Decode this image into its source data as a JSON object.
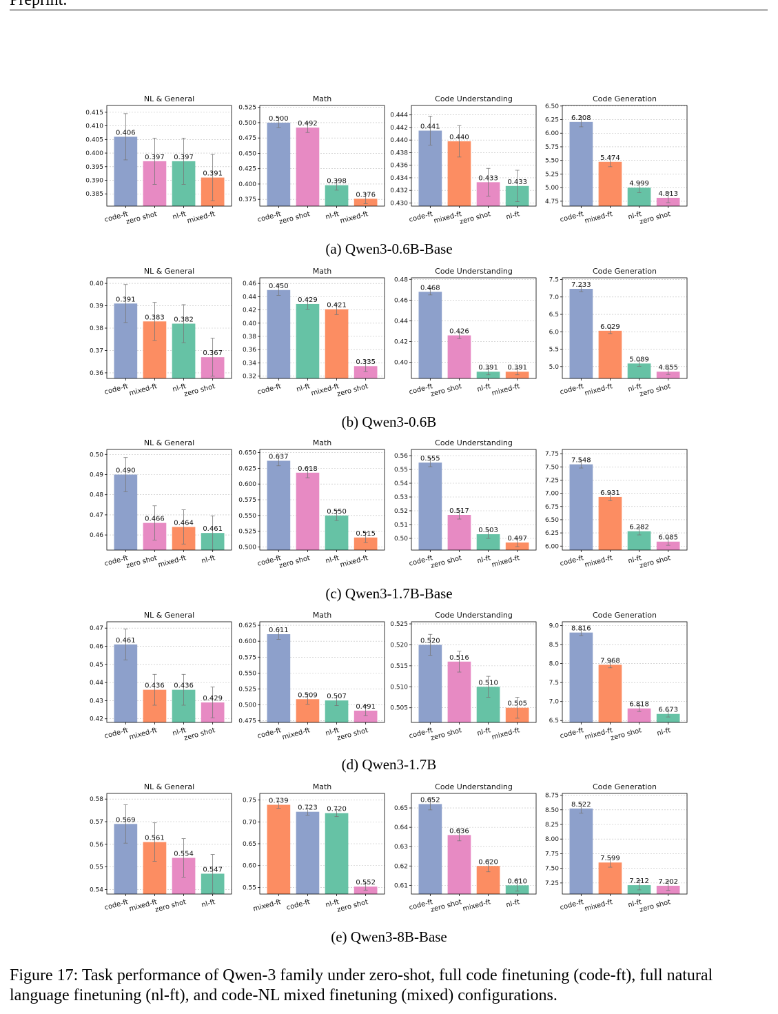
{
  "header": {
    "text": "Preprint."
  },
  "figure_caption": "Figure 17: Task performance of Qwen-3 family under zero-shot, full code finetuning (code-ft), full natural language finetuning (nl-ft), and code-NL mixed finetuning (mixed) configurations.",
  "colors": {
    "code-ft": "#8DA0CB",
    "zero shot": "#E78AC3",
    "nl-ft": "#66C2A5",
    "mixed-ft": "#FC8D62"
  },
  "rows": [
    {
      "label": "(a) Qwen3-0.6B-Base"
    },
    {
      "label": "(b) Qwen3-0.6B"
    },
    {
      "label": "(c) Qwen3-1.7B-Base"
    },
    {
      "label": "(d) Qwen3-1.7B"
    },
    {
      "label": "(e) Qwen3-8B-Base"
    }
  ],
  "chart_data": [
    {
      "type": "bar",
      "title": "NL & General",
      "categories": [
        "code-ft",
        "zero shot",
        "nl-ft",
        "mixed-ft"
      ],
      "values": [
        0.406,
        0.397,
        0.397,
        0.391
      ],
      "value_labels": [
        "0.406",
        "0.397",
        "0.397",
        "0.391"
      ],
      "errors": [
        0.0085,
        0.0085,
        0.0085,
        0.0085
      ],
      "ylim": [
        0.3805,
        0.4175
      ],
      "yticks": [
        0.385,
        0.39,
        0.395,
        0.4,
        0.405,
        0.41,
        0.415
      ],
      "ytick_labels": [
        "0.385",
        "0.390",
        "0.395",
        "0.400",
        "0.405",
        "0.410",
        "0.415"
      ],
      "grid": true
    },
    {
      "type": "bar",
      "title": "Math",
      "categories": [
        "code-ft",
        "zero shot",
        "nl-ft",
        "mixed-ft"
      ],
      "values": [
        0.5,
        0.492,
        0.398,
        0.376
      ],
      "value_labels": [
        "0.500",
        "0.492",
        "0.398",
        "0.376"
      ],
      "errors": [
        0.008,
        0.008,
        0.008,
        0.008
      ],
      "ylim": [
        0.364,
        0.528
      ],
      "yticks": [
        0.375,
        0.4,
        0.425,
        0.45,
        0.475,
        0.5,
        0.525
      ],
      "ytick_labels": [
        "0.375",
        "0.400",
        "0.425",
        "0.450",
        "0.475",
        "0.500",
        "0.525"
      ],
      "grid": true
    },
    {
      "type": "bar",
      "title": "Code Understanding",
      "categories": [
        "code-ft",
        "mixed-ft",
        "zero shot",
        "nl-ft"
      ],
      "values": [
        0.4415,
        0.4398,
        0.4333,
        0.4327
      ],
      "value_labels": [
        "0.441",
        "0.440",
        "0.433",
        "0.433"
      ],
      "errors": [
        0.0023,
        0.0025,
        0.0022,
        0.0025
      ],
      "ylim": [
        0.4295,
        0.4455
      ],
      "yticks": [
        0.43,
        0.432,
        0.434,
        0.436,
        0.438,
        0.44,
        0.442,
        0.444
      ],
      "ytick_labels": [
        "0.430",
        "0.432",
        "0.434",
        "0.436",
        "0.438",
        "0.440",
        "0.442",
        "0.444"
      ],
      "grid": true
    },
    {
      "type": "bar",
      "title": "Code Generation",
      "categories": [
        "code-ft",
        "mixed-ft",
        "nl-ft",
        "zero shot"
      ],
      "values": [
        6.208,
        5.474,
        4.999,
        4.813
      ],
      "value_labels": [
        "6.208",
        "5.474",
        "4.999",
        "4.813"
      ],
      "errors": [
        0.09,
        0.09,
        0.09,
        0.09
      ],
      "ylim": [
        4.66,
        6.51
      ],
      "yticks": [
        4.75,
        5.0,
        5.25,
        5.5,
        5.75,
        6.0,
        6.25,
        6.5
      ],
      "ytick_labels": [
        "4.75",
        "5.00",
        "5.25",
        "5.50",
        "5.75",
        "6.00",
        "6.25",
        "6.50"
      ],
      "grid": true
    },
    {
      "type": "bar",
      "title": "NL & General",
      "categories": [
        "code-ft",
        "mixed-ft",
        "nl-ft",
        "zero shot"
      ],
      "values": [
        0.391,
        0.383,
        0.382,
        0.367
      ],
      "value_labels": [
        "0.391",
        "0.383",
        "0.382",
        "0.367"
      ],
      "errors": [
        0.0085,
        0.0085,
        0.0085,
        0.0085
      ],
      "ylim": [
        0.3575,
        0.4025
      ],
      "yticks": [
        0.36,
        0.37,
        0.38,
        0.39,
        0.4
      ],
      "ytick_labels": [
        "0.36",
        "0.37",
        "0.38",
        "0.39",
        "0.40"
      ],
      "grid": true
    },
    {
      "type": "bar",
      "title": "Math",
      "categories": [
        "code-ft",
        "nl-ft",
        "mixed-ft",
        "zero shot"
      ],
      "values": [
        0.45,
        0.429,
        0.421,
        0.335
      ],
      "value_labels": [
        "0.450",
        "0.429",
        "0.421",
        "0.335"
      ],
      "errors": [
        0.008,
        0.008,
        0.008,
        0.008
      ],
      "ylim": [
        0.3165,
        0.4685
      ],
      "yticks": [
        0.32,
        0.34,
        0.36,
        0.38,
        0.4,
        0.42,
        0.44,
        0.46
      ],
      "ytick_labels": [
        "0.32",
        "0.34",
        "0.36",
        "0.38",
        "0.40",
        "0.42",
        "0.44",
        "0.46"
      ],
      "grid": true
    },
    {
      "type": "bar",
      "title": "Code Understanding",
      "categories": [
        "code-ft",
        "zero shot",
        "nl-ft",
        "mixed-ft"
      ],
      "values": [
        0.468,
        0.426,
        0.391,
        0.391
      ],
      "value_labels": [
        "0.468",
        "0.426",
        "0.391",
        "0.391"
      ],
      "errors": [
        0.003,
        0.003,
        0.003,
        0.003
      ],
      "ylim": [
        0.3845,
        0.4815
      ],
      "yticks": [
        0.4,
        0.42,
        0.44,
        0.46,
        0.48
      ],
      "ytick_labels": [
        "0.40",
        "0.42",
        "0.44",
        "0.46",
        "0.48"
      ],
      "grid": true
    },
    {
      "type": "bar",
      "title": "Code Generation",
      "categories": [
        "code-ft",
        "mixed-ft",
        "nl-ft",
        "zero shot"
      ],
      "values": [
        7.233,
        6.029,
        5.089,
        4.855
      ],
      "value_labels": [
        "7.233",
        "6.029",
        "5.089",
        "4.855"
      ],
      "errors": [
        0.08,
        0.08,
        0.08,
        0.08
      ],
      "ylim": [
        4.66,
        7.55
      ],
      "yticks": [
        5.0,
        5.5,
        6.0,
        6.5,
        7.0,
        7.5
      ],
      "ytick_labels": [
        "5.0",
        "5.5",
        "6.0",
        "6.5",
        "7.0",
        "7.5"
      ],
      "grid": true
    },
    {
      "type": "bar",
      "title": "NL & General",
      "categories": [
        "code-ft",
        "zero shot",
        "mixed-ft",
        "nl-ft"
      ],
      "values": [
        0.49,
        0.466,
        0.464,
        0.461
      ],
      "value_labels": [
        "0.490",
        "0.466",
        "0.464",
        "0.461"
      ],
      "errors": [
        0.0085,
        0.0085,
        0.0085,
        0.0085
      ],
      "ylim": [
        0.4525,
        0.5025
      ],
      "yticks": [
        0.46,
        0.47,
        0.48,
        0.49,
        0.5
      ],
      "ytick_labels": [
        "0.46",
        "0.47",
        "0.48",
        "0.49",
        "0.50"
      ],
      "grid": true
    },
    {
      "type": "bar",
      "title": "Math",
      "categories": [
        "code-ft",
        "zero shot",
        "nl-ft",
        "mixed-ft"
      ],
      "values": [
        0.637,
        0.618,
        0.55,
        0.515
      ],
      "value_labels": [
        "0.637",
        "0.618",
        "0.550",
        "0.515"
      ],
      "errors": [
        0.008,
        0.008,
        0.008,
        0.008
      ],
      "ylim": [
        0.495,
        0.655
      ],
      "yticks": [
        0.5,
        0.525,
        0.55,
        0.575,
        0.6,
        0.625,
        0.65
      ],
      "ytick_labels": [
        "0.500",
        "0.525",
        "0.550",
        "0.575",
        "0.600",
        "0.625",
        "0.650"
      ],
      "grid": true
    },
    {
      "type": "bar",
      "title": "Code Understanding",
      "categories": [
        "code-ft",
        "zero shot",
        "nl-ft",
        "mixed-ft"
      ],
      "values": [
        0.555,
        0.517,
        0.503,
        0.497
      ],
      "value_labels": [
        "0.555",
        "0.517",
        "0.503",
        "0.497"
      ],
      "errors": [
        0.003,
        0.003,
        0.003,
        0.003
      ],
      "ylim": [
        0.4915,
        0.5645
      ],
      "yticks": [
        0.5,
        0.51,
        0.52,
        0.53,
        0.54,
        0.55,
        0.56
      ],
      "ytick_labels": [
        "0.50",
        "0.51",
        "0.52",
        "0.53",
        "0.54",
        "0.55",
        "0.56"
      ],
      "grid": true
    },
    {
      "type": "bar",
      "title": "",
      "categories": [
        "code-ft",
        "mixed-ft",
        "nl-ft",
        "zero shot"
      ],
      "values": [
        7.548,
        6.931,
        6.282,
        6.085
      ],
      "value_labels": [
        "7.548",
        "6.931",
        "6.282",
        "6.085"
      ],
      "errors": [
        0.07,
        0.07,
        0.07,
        0.07
      ],
      "ylim": [
        5.925,
        7.83
      ],
      "yticks": [
        6.0,
        6.25,
        6.5,
        6.75,
        7.0,
        7.25,
        7.5,
        7.75
      ],
      "ytick_labels": [
        "6.00",
        "6.25",
        "6.50",
        "6.75",
        "7.00",
        "7.25",
        "7.50",
        "7.75"
      ],
      "grid": true
    },
    {
      "type": "bar",
      "title": "NL & General",
      "categories": [
        "code-ft",
        "mixed-ft",
        "nl-ft",
        "zero shot"
      ],
      "values": [
        0.461,
        0.436,
        0.436,
        0.429
      ],
      "value_labels": [
        "0.461",
        "0.436",
        "0.436",
        "0.429"
      ],
      "errors": [
        0.0085,
        0.0085,
        0.0085,
        0.0085
      ],
      "ylim": [
        0.418,
        0.4735
      ],
      "yticks": [
        0.42,
        0.43,
        0.44,
        0.45,
        0.46,
        0.47
      ],
      "ytick_labels": [
        "0.42",
        "0.43",
        "0.44",
        "0.45",
        "0.46",
        "0.47"
      ],
      "grid": true
    },
    {
      "type": "bar",
      "title": "Math",
      "categories": [
        "code-ft",
        "mixed-ft",
        "nl-ft",
        "zero shot"
      ],
      "values": [
        0.611,
        0.509,
        0.507,
        0.491
      ],
      "value_labels": [
        "0.611",
        "0.509",
        "0.507",
        "0.491"
      ],
      "errors": [
        0.008,
        0.008,
        0.008,
        0.008
      ],
      "ylim": [
        0.4725,
        0.6305
      ],
      "yticks": [
        0.475,
        0.5,
        0.525,
        0.55,
        0.575,
        0.6,
        0.625
      ],
      "ytick_labels": [
        "0.475",
        "0.500",
        "0.525",
        "0.550",
        "0.575",
        "0.600",
        "0.625"
      ],
      "grid": true
    },
    {
      "type": "bar",
      "title": "Code Understanding",
      "categories": [
        "code-ft",
        "zero shot",
        "nl-ft",
        "mixed-ft"
      ],
      "values": [
        0.52,
        0.516,
        0.51,
        0.505
      ],
      "value_labels": [
        "0.520",
        "0.516",
        "0.510",
        "0.505"
      ],
      "errors": [
        0.0025,
        0.0025,
        0.0025,
        0.0025
      ],
      "ylim": [
        0.5015,
        0.5255
      ],
      "yticks": [
        0.505,
        0.51,
        0.515,
        0.52,
        0.525
      ],
      "ytick_labels": [
        "0.505",
        "0.510",
        "0.515",
        "0.520",
        "0.525"
      ],
      "grid": true
    },
    {
      "type": "bar",
      "title": "Code Generation",
      "categories": [
        "code-ft",
        "mixed-ft",
        "zero shot",
        "nl-ft"
      ],
      "values": [
        8.816,
        7.968,
        6.818,
        6.673
      ],
      "value_labels": [
        "8.816",
        "7.968",
        "6.818",
        "6.673"
      ],
      "errors": [
        0.08,
        0.08,
        0.08,
        0.08
      ],
      "ylim": [
        6.45,
        9.1
      ],
      "yticks": [
        6.5,
        7.0,
        7.5,
        8.0,
        8.5,
        9.0
      ],
      "ytick_labels": [
        "6.5",
        "7.0",
        "7.5",
        "8.0",
        "8.5",
        "9.0"
      ],
      "grid": true
    },
    {
      "type": "bar",
      "title": "NL & General",
      "categories": [
        "code-ft",
        "mixed-ft",
        "zero shot",
        "nl-ft"
      ],
      "values": [
        0.569,
        0.561,
        0.554,
        0.547
      ],
      "value_labels": [
        "0.569",
        "0.561",
        "0.554",
        "0.547"
      ],
      "errors": [
        0.0085,
        0.0085,
        0.0085,
        0.0085
      ],
      "ylim": [
        0.538,
        0.5825
      ],
      "yticks": [
        0.54,
        0.55,
        0.56,
        0.57,
        0.58
      ],
      "ytick_labels": [
        "0.54",
        "0.55",
        "0.56",
        "0.57",
        "0.58"
      ],
      "grid": true
    },
    {
      "type": "bar",
      "title": "Math",
      "categories": [
        "mixed-ft",
        "code-ft",
        "nl-ft",
        "zero shot"
      ],
      "values": [
        0.739,
        0.723,
        0.72,
        0.552
      ],
      "value_labels": [
        "0.739",
        "0.723",
        "0.720",
        "0.552"
      ],
      "errors": [
        0.008,
        0.008,
        0.008,
        0.008
      ],
      "ylim": [
        0.535,
        0.765
      ],
      "yticks": [
        0.55,
        0.6,
        0.65,
        0.7,
        0.75
      ],
      "ytick_labels": [
        "0.55",
        "0.60",
        "0.65",
        "0.70",
        "0.75"
      ],
      "grid": true
    },
    {
      "type": "bar",
      "title": "Code Understanding",
      "categories": [
        "code-ft",
        "zero shot",
        "mixed-ft",
        "nl-ft"
      ],
      "values": [
        0.652,
        0.636,
        0.62,
        0.61
      ],
      "value_labels": [
        "0.652",
        "0.636",
        "0.620",
        "0.610"
      ],
      "errors": [
        0.003,
        0.003,
        0.003,
        0.003
      ],
      "ylim": [
        0.6055,
        0.6575
      ],
      "yticks": [
        0.61,
        0.62,
        0.63,
        0.64,
        0.65
      ],
      "ytick_labels": [
        "0.61",
        "0.62",
        "0.63",
        "0.64",
        "0.65"
      ],
      "grid": true
    },
    {
      "type": "bar",
      "title": "Code Generation",
      "categories": [
        "code-ft",
        "mixed-ft",
        "nl-ft",
        "zero shot"
      ],
      "values": [
        8.522,
        7.599,
        7.212,
        7.202
      ],
      "value_labels": [
        "8.522",
        "7.599",
        "7.212",
        "7.202"
      ],
      "errors": [
        0.08,
        0.08,
        0.08,
        0.08
      ],
      "ylim": [
        7.06,
        8.78
      ],
      "yticks": [
        7.25,
        7.5,
        7.75,
        8.0,
        8.25,
        8.5,
        8.75
      ],
      "ytick_labels": [
        "7.25",
        "7.50",
        "7.75",
        "8.00",
        "8.25",
        "8.50",
        "8.75"
      ],
      "grid": true
    }
  ]
}
